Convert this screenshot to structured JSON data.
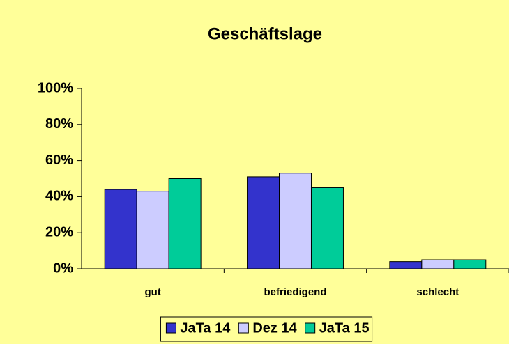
{
  "chart_data": {
    "type": "bar",
    "title": "Geschäftslage",
    "categories": [
      "gut",
      "befriedigend",
      "schlecht"
    ],
    "series": [
      {
        "name": "JaTa 14",
        "color": "#3333cc",
        "values": [
          44,
          51,
          4
        ]
      },
      {
        "name": "Dez 14",
        "color": "#ccccff",
        "values": [
          43,
          53,
          5
        ]
      },
      {
        "name": "JaTa 15",
        "color": "#00cc99",
        "values": [
          50,
          45,
          5
        ]
      }
    ],
    "ylim": [
      0,
      100
    ],
    "yticks": [
      {
        "value": 0,
        "label": "0%"
      },
      {
        "value": 20,
        "label": "20%"
      },
      {
        "value": 40,
        "label": "40%"
      },
      {
        "value": 60,
        "label": "60%"
      },
      {
        "value": 80,
        "label": "80%"
      },
      {
        "value": 100,
        "label": "100%"
      }
    ],
    "legend": "bottom",
    "background": "#ffff99"
  }
}
